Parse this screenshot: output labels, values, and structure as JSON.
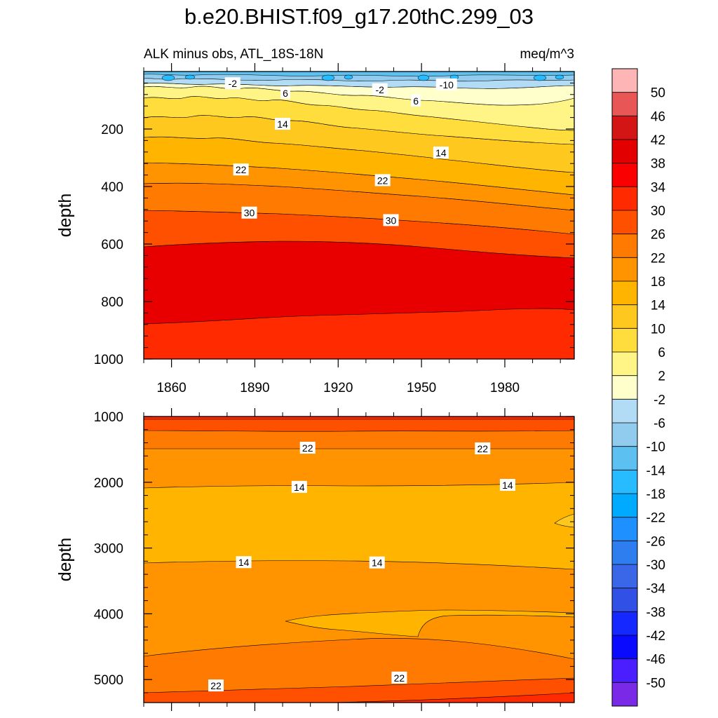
{
  "chart_data": {
    "type": "heatmap",
    "title": "b.e20.BHIST.f09_g17.20thC.299_03",
    "left_subtitle": "ALK minus obs, ATL_18S-18N",
    "right_subtitle": "meq/m^3",
    "x_axis": {
      "label": "",
      "range": [
        1850,
        2005
      ],
      "tick_values": [
        1860,
        1890,
        1920,
        1950,
        1980
      ],
      "tick_labels": [
        "1860",
        "1890",
        "1920",
        "1950",
        "1980"
      ]
    },
    "panels": [
      {
        "name": "upper",
        "ylabel": "depth",
        "ylim": [
          0,
          1000
        ],
        "y_tick_values": [
          200,
          400,
          600,
          800,
          1000
        ],
        "y_tick_labels": [
          "200",
          "400",
          "600",
          "800",
          "1000"
        ],
        "shows_x_tick_labels": true,
        "contour_labels": [
          {
            "text": "-2",
            "x": 1882,
            "y": 42
          },
          {
            "text": "6",
            "x": 1901,
            "y": 75
          },
          {
            "text": "-2",
            "x": 1935,
            "y": 63
          },
          {
            "text": "-10",
            "x": 1959,
            "y": 46
          },
          {
            "text": "6",
            "x": 1948,
            "y": 102
          },
          {
            "text": "14",
            "x": 1900,
            "y": 183
          },
          {
            "text": "14",
            "x": 1957,
            "y": 283
          },
          {
            "text": "22",
            "x": 1885,
            "y": 342
          },
          {
            "text": "22",
            "x": 1936,
            "y": 379
          },
          {
            "text": "30",
            "x": 1888,
            "y": 492
          },
          {
            "text": "30",
            "x": 1939,
            "y": 518
          }
        ]
      },
      {
        "name": "lower",
        "ylabel": "depth",
        "ylim": [
          1000,
          5350
        ],
        "y_tick_values": [
          1000,
          2000,
          3000,
          4000,
          5000
        ],
        "y_tick_labels": [
          "1000",
          "2000",
          "3000",
          "4000",
          "5000"
        ],
        "shows_x_tick_labels": false,
        "contour_labels": [
          {
            "text": "22",
            "x": 1909,
            "y": 1480
          },
          {
            "text": "22",
            "x": 1972,
            "y": 1490
          },
          {
            "text": "14",
            "x": 1906,
            "y": 2075
          },
          {
            "text": "14",
            "x": 1981,
            "y": 2045
          },
          {
            "text": "14",
            "x": 1886,
            "y": 3220
          },
          {
            "text": "14",
            "x": 1934,
            "y": 3225
          },
          {
            "text": "22",
            "x": 1942,
            "y": 4975
          },
          {
            "text": "22",
            "x": 1876,
            "y": 5095
          }
        ]
      }
    ],
    "colorbar": {
      "labels": [
        "50",
        "46",
        "42",
        "38",
        "34",
        "30",
        "26",
        "22",
        "18",
        "14",
        "10",
        "6",
        "2",
        "-2",
        "-6",
        "-10",
        "-14",
        "-18",
        "-22",
        "-26",
        "-30",
        "-34",
        "-38",
        "-42",
        "-46",
        "-50"
      ],
      "colors": [
        "#fdb5b5",
        "#e85656",
        "#d41515",
        "#e30000",
        "#fa0000",
        "#ff2a00",
        "#ff5000",
        "#ff7a00",
        "#ff9400",
        "#ffb400",
        "#ffc81e",
        "#ffdd3c",
        "#fff486",
        "#ffffcc",
        "#b2dcf5",
        "#91ccee",
        "#5cc1f0",
        "#26bcff",
        "#00aaff",
        "#1e90ff",
        "#2f7ef0",
        "#3a66e8",
        "#3050e6",
        "#1428ff",
        "#0a0aff",
        "#4b1eff",
        "#7a2ae6"
      ]
    }
  }
}
